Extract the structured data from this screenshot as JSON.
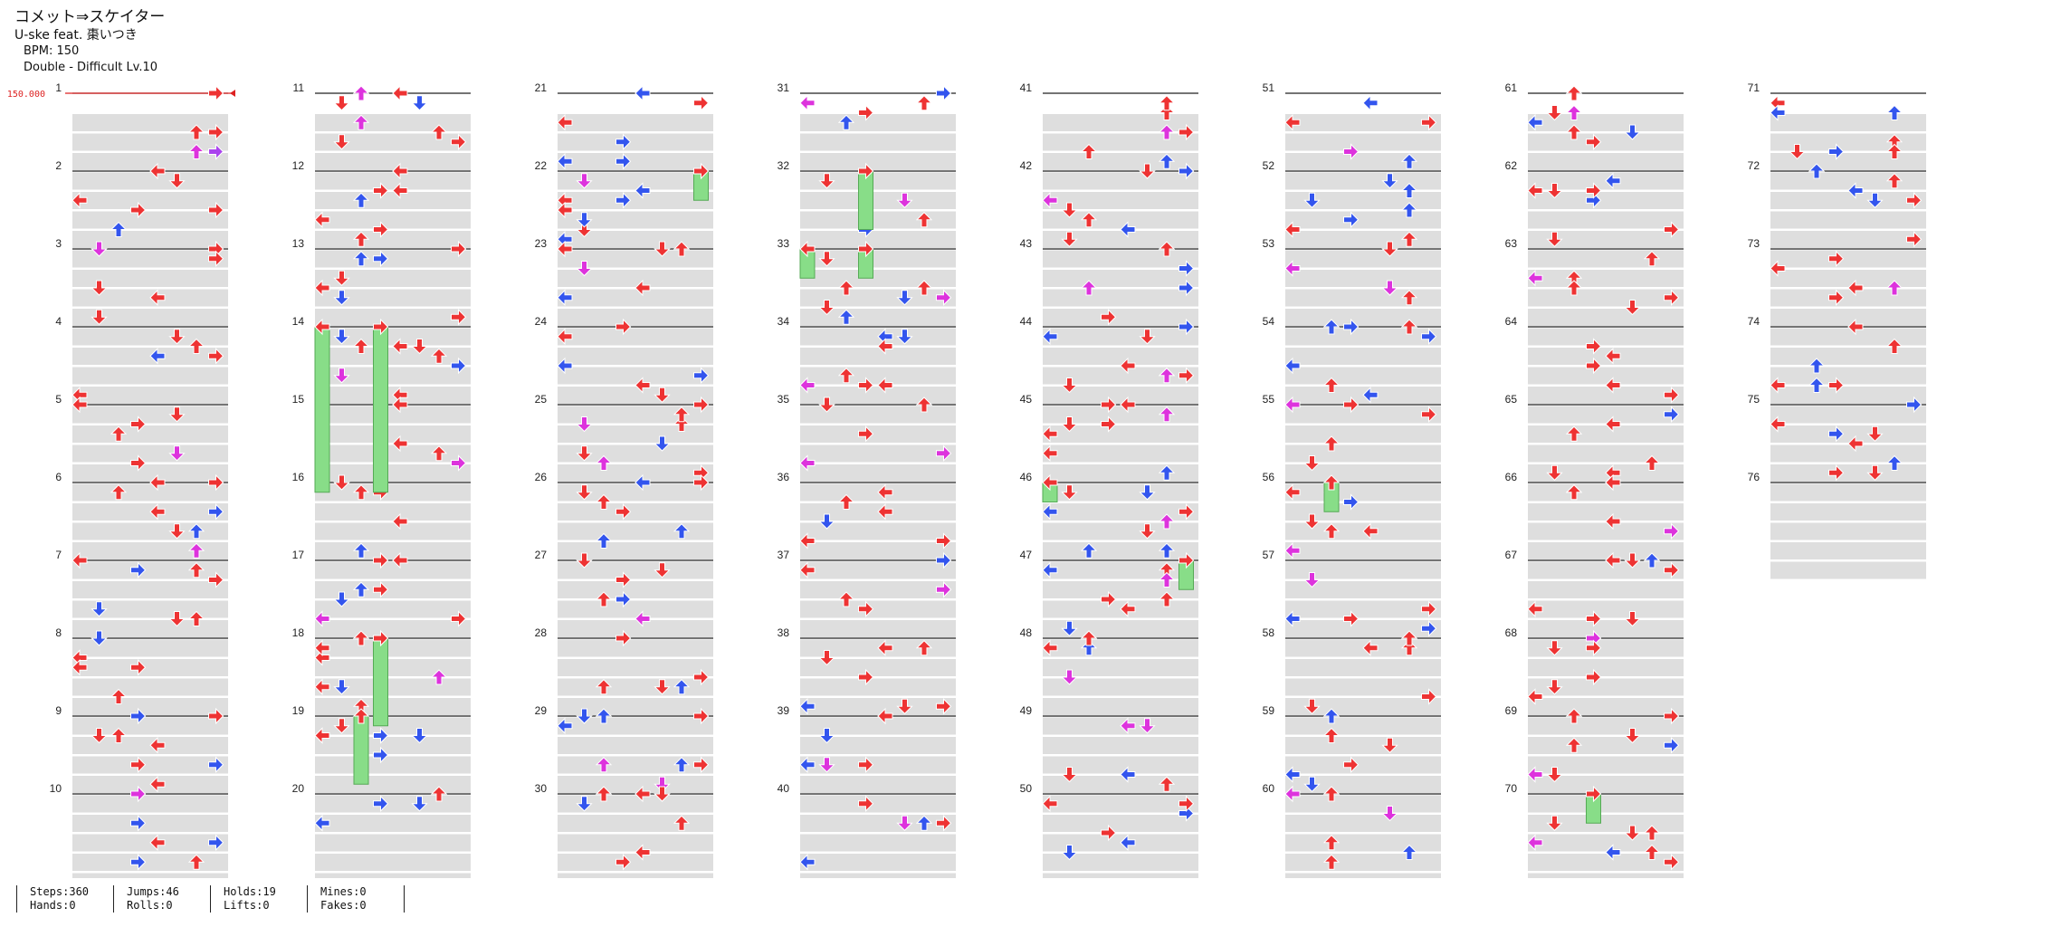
{
  "header": {
    "title": "コメット⇒スケイター",
    "artist": "U-ske feat. 棗いつき",
    "bpm": "BPM: 150",
    "chart": "Double - Difficult  Lv.10"
  },
  "bpm_marker": "150.000",
  "measures": [
    "1",
    "2",
    "3",
    "4",
    "5",
    "6",
    "7",
    "8",
    "9",
    "10",
    "11",
    "12",
    "13",
    "14",
    "15",
    "16",
    "17",
    "18",
    "19",
    "20",
    "21",
    "22",
    "23",
    "24",
    "25",
    "26",
    "27",
    "28",
    "29",
    "30",
    "31",
    "32",
    "33",
    "34",
    "35",
    "36",
    "37",
    "38",
    "39",
    "40",
    "41",
    "42",
    "43",
    "44",
    "45",
    "46",
    "47",
    "48",
    "49",
    "50",
    "51",
    "52",
    "53",
    "54",
    "55",
    "56",
    "57",
    "58",
    "59",
    "60",
    "61",
    "62",
    "63",
    "64",
    "65",
    "66",
    "67",
    "68",
    "69",
    "70",
    "71",
    "72",
    "73",
    "74",
    "75",
    "76"
  ],
  "stats": [
    {
      "top": "Steps:360",
      "bottom": "Hands:0"
    },
    {
      "top": "Jumps:46",
      "bottom": "Rolls:0"
    },
    {
      "top": "Holds:19",
      "bottom": "Lifts:0"
    },
    {
      "top": "Mines:0",
      "bottom": "Fakes:0"
    }
  ],
  "colors": {
    "quarter": "#ee3333",
    "eighth": "#3355ee",
    "sixteenth": "#dd33dd",
    "twelfth": "#aa44ee",
    "hold": "#88dd88",
    "stripe": "#dedede",
    "bpm": "#dd2222"
  },
  "chart_data": {
    "type": "stepchart",
    "lanes": [
      "left",
      "down",
      "up",
      "right",
      "left",
      "down",
      "up",
      "right"
    ],
    "notes": [
      {
        "m": 1,
        "row": 0,
        "col": 7,
        "c": "q"
      },
      {
        "m": 1,
        "row": 8,
        "col": 7,
        "c": "q"
      },
      {
        "m": 1,
        "row": 8,
        "col": 6,
        "c": "q"
      },
      {
        "m": 1,
        "row": 12,
        "col": 6,
        "c": "s"
      },
      {
        "m": 1,
        "row": 12,
        "col": 7,
        "c": "t"
      }
    ]
  }
}
